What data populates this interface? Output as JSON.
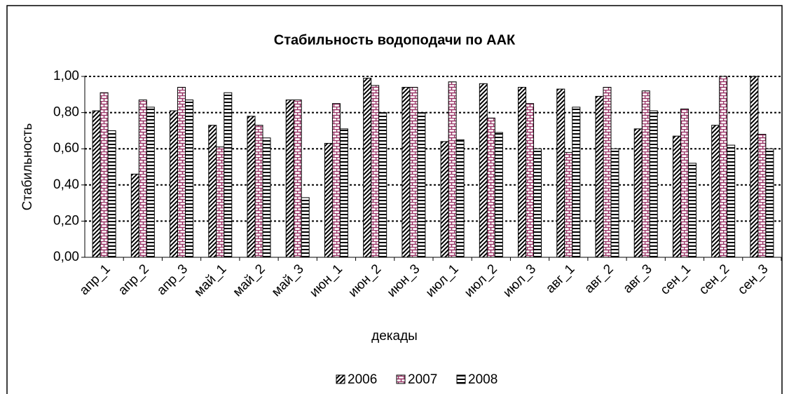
{
  "chart_data": {
    "type": "bar",
    "title": "Стабильность водоподачи по ААК",
    "x_label": "декады",
    "y_label": "Стабильность",
    "categories": [
      "апр_1",
      "апр_2",
      "апр_3",
      "май_1",
      "май_2",
      "май_3",
      "июн_1",
      "июн_2",
      "июн_3",
      "июл_1",
      "июл_2",
      "июл_3",
      "авг_1",
      "авг_2",
      "авг_3",
      "сен_1",
      "сен_2",
      "сен_3"
    ],
    "series": [
      {
        "name": "2006",
        "color": "#000000",
        "values": [
          0.81,
          0.46,
          0.81,
          0.73,
          0.78,
          0.87,
          0.63,
          0.99,
          0.94,
          0.64,
          0.96,
          0.94,
          0.93,
          0.89,
          0.71,
          0.67,
          0.73,
          1.0
        ]
      },
      {
        "name": "2007",
        "color": "#993366",
        "values": [
          0.91,
          0.87,
          0.94,
          0.61,
          0.73,
          0.87,
          0.85,
          0.95,
          0.94,
          0.97,
          0.77,
          0.85,
          0.58,
          0.94,
          0.92,
          0.82,
          1.0,
          0.68
        ]
      },
      {
        "name": "2008",
        "color": "#000000",
        "values": [
          0.7,
          0.83,
          0.87,
          0.91,
          0.66,
          0.33,
          0.71,
          0.8,
          0.8,
          0.65,
          0.69,
          0.6,
          0.83,
          0.6,
          0.81,
          0.52,
          0.62,
          0.6
        ]
      }
    ],
    "ylim": [
      0,
      1
    ],
    "yticks": [
      {
        "value": 0,
        "label": "0,00"
      },
      {
        "value": 0.2,
        "label": "0,20"
      },
      {
        "value": 0.4,
        "label": "0,40"
      },
      {
        "value": 0.6,
        "label": "0,60"
      },
      {
        "value": 0.8,
        "label": "0,80"
      },
      {
        "value": 1,
        "label": "1,00"
      }
    ],
    "grid": true,
    "legend": "bottom"
  }
}
